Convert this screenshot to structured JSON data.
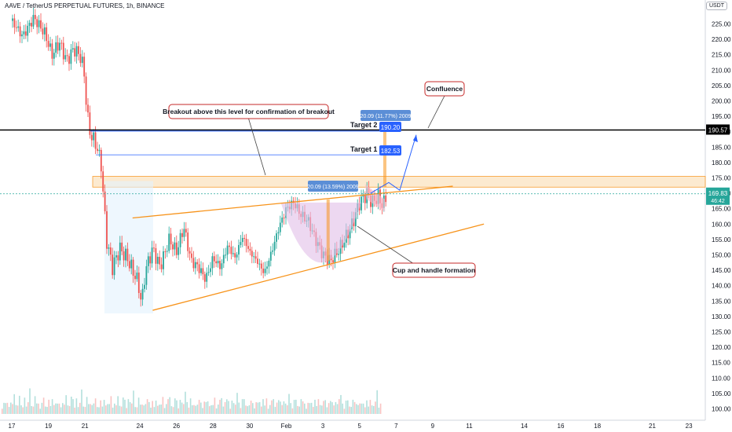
{
  "header": {
    "symbol": "AAVE / TetherUS PERPETUAL FUTURES, 1h, BINANCE"
  },
  "currency_button": "USDT",
  "chart_data": {
    "type": "candlestick",
    "title": "AAVE / TetherUS PERPETUAL FUTURES, 1h, BINANCE",
    "ylim": [
      98,
      230
    ],
    "y_ticks": [
      100,
      105,
      110,
      115,
      120,
      125,
      130,
      135,
      140,
      145,
      150,
      155,
      160,
      165,
      170,
      175,
      180,
      185,
      190,
      195,
      200,
      205,
      210,
      215,
      220,
      225
    ],
    "x_ticks": [
      {
        "label": "17",
        "day": 0
      },
      {
        "label": "19",
        "day": 2
      },
      {
        "label": "21",
        "day": 4
      },
      {
        "label": "24",
        "day": 7
      },
      {
        "label": "26",
        "day": 9
      },
      {
        "label": "28",
        "day": 11
      },
      {
        "label": "30",
        "day": 13
      },
      {
        "label": "Feb",
        "day": 15
      },
      {
        "label": "3",
        "day": 17
      },
      {
        "label": "5",
        "day": 19
      },
      {
        "label": "7",
        "day": 21
      },
      {
        "label": "9",
        "day": 23
      },
      {
        "label": "11",
        "day": 25
      },
      {
        "label": "14",
        "day": 28
      },
      {
        "label": "16",
        "day": 30
      },
      {
        "label": "18",
        "day": 32
      },
      {
        "label": "21",
        "day": 35
      },
      {
        "label": "23",
        "day": 37
      }
    ],
    "price_path": [
      [
        0,
        226
      ],
      [
        0.6,
        221
      ],
      [
        1.2,
        227
      ],
      [
        1.8,
        222
      ],
      [
        2.2,
        215
      ],
      [
        2.6,
        219
      ],
      [
        3.0,
        213
      ],
      [
        3.4,
        217
      ],
      [
        3.8,
        214
      ],
      [
        4.0,
        207
      ],
      [
        4.1,
        196
      ],
      [
        4.3,
        189
      ],
      [
        4.6,
        186
      ],
      [
        4.9,
        179
      ],
      [
        5.0,
        169
      ],
      [
        5.2,
        154
      ],
      [
        5.5,
        146
      ],
      [
        5.9,
        152
      ],
      [
        6.3,
        149
      ],
      [
        6.6,
        145
      ],
      [
        6.9,
        141
      ],
      [
        7.1,
        134
      ],
      [
        7.3,
        145
      ],
      [
        7.7,
        152
      ],
      [
        8.1,
        146
      ],
      [
        8.6,
        155
      ],
      [
        9.0,
        151
      ],
      [
        9.4,
        159
      ],
      [
        9.8,
        148
      ],
      [
        10.2,
        146
      ],
      [
        10.6,
        142
      ],
      [
        11.0,
        149
      ],
      [
        11.4,
        146
      ],
      [
        11.8,
        153
      ],
      [
        12.2,
        149
      ],
      [
        12.6,
        156
      ],
      [
        13.0,
        151
      ],
      [
        13.4,
        148
      ],
      [
        13.8,
        144
      ],
      [
        14.2,
        151
      ],
      [
        14.6,
        159
      ],
      [
        15.0,
        165
      ],
      [
        15.4,
        167
      ],
      [
        15.8,
        163
      ],
      [
        16.2,
        161
      ],
      [
        16.6,
        155
      ],
      [
        17.0,
        150
      ],
      [
        17.4,
        148
      ],
      [
        17.8,
        151
      ],
      [
        18.2,
        155
      ],
      [
        18.6,
        160
      ],
      [
        19.0,
        167
      ],
      [
        19.4,
        170
      ],
      [
        19.7,
        167
      ],
      [
        20.0,
        169
      ],
      [
        20.3,
        166
      ],
      [
        20.5,
        170
      ]
    ],
    "volume_levels": [
      3,
      5,
      4,
      6,
      3,
      4,
      5,
      8,
      3,
      4,
      7,
      5,
      3,
      6,
      4,
      5,
      9,
      4,
      3,
      6,
      5,
      4,
      3,
      5,
      6,
      4,
      3,
      5,
      4,
      6
    ],
    "current_price": "169.83",
    "current_price_color": "#26a69a",
    "countdown": "46:42",
    "level_price": "190.57",
    "annotations": {
      "breakout": "Breakout above this level for confirmation of breakout",
      "confluence": "Confluence",
      "cup_handle": "Cup and handle formation",
      "target1_label": "Target 1",
      "target2_label": "Target 2",
      "target1_value": "182.53",
      "target2_value": "190.20",
      "measure_left": "20.09 (13.59%) 2009",
      "measure_right": "20.09 (11.77%) 2009"
    }
  },
  "colors": {
    "up": "#26a69a",
    "down": "#ef5350",
    "channel": "#f7931a",
    "annotation_border": "#c62828",
    "target_box": "#2962ff",
    "measure_box": "#5b8ed6",
    "zone_fill": "#fce8cc",
    "cup_fill": "#e1bee7"
  }
}
